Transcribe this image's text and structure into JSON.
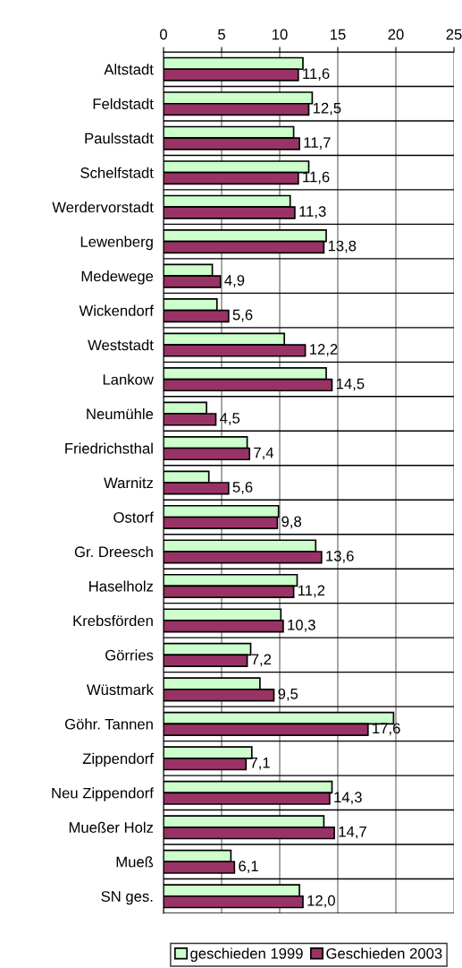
{
  "chart_data": {
    "type": "bar",
    "orientation": "horizontal",
    "categories": [
      "Altstadt",
      "Feldstadt",
      "Paulsstadt",
      "Schelfstadt",
      "Werdervorstadt",
      "Lewenberg",
      "Medewege",
      "Wickendorf",
      "Weststadt",
      "Lankow",
      "Neumühle",
      "Friedrichsthal",
      "Warnitz",
      "Ostorf",
      "Gr. Dreesch",
      "Haselholz",
      "Krebsförden",
      "Görries",
      "Wüstmark",
      "Göhr. Tannen",
      "Zippendorf",
      "Neu Zippendorf",
      "Mueßer Holz",
      "Mueß",
      "SN ges."
    ],
    "series": [
      {
        "name": "geschieden 1999",
        "color": "#ccffcc",
        "values": [
          12.0,
          12.8,
          11.2,
          12.5,
          10.9,
          14.0,
          4.2,
          4.6,
          10.4,
          14.0,
          3.7,
          7.2,
          3.9,
          9.9,
          13.1,
          11.5,
          10.1,
          7.5,
          8.3,
          19.8,
          7.6,
          14.5,
          13.8,
          5.8,
          11.7
        ]
      },
      {
        "name": "Geschieden 2003",
        "color": "#993366",
        "values": [
          11.6,
          12.5,
          11.7,
          11.6,
          11.3,
          13.8,
          4.9,
          5.6,
          12.2,
          14.5,
          4.5,
          7.4,
          5.6,
          9.8,
          13.6,
          11.2,
          10.3,
          7.2,
          9.5,
          17.6,
          7.1,
          14.3,
          14.7,
          6.1,
          12.0
        ],
        "value_labels": [
          "11,6",
          "12,5",
          "11,7",
          "11,6",
          "11,3",
          "13,8",
          "4,9",
          "5,6",
          "12,2",
          "14,5",
          "4,5",
          "7,4",
          "5,6",
          "9,8",
          "13,6",
          "11,2",
          "10,3",
          "7,2",
          "9,5",
          "17,6",
          "7,1",
          "14,3",
          "14,7",
          "6,1",
          "12,0"
        ]
      }
    ],
    "xlim": [
      0,
      25
    ],
    "xticks": [
      0,
      5,
      10,
      15,
      20,
      25
    ],
    "grid": true,
    "legend": "bottom"
  }
}
